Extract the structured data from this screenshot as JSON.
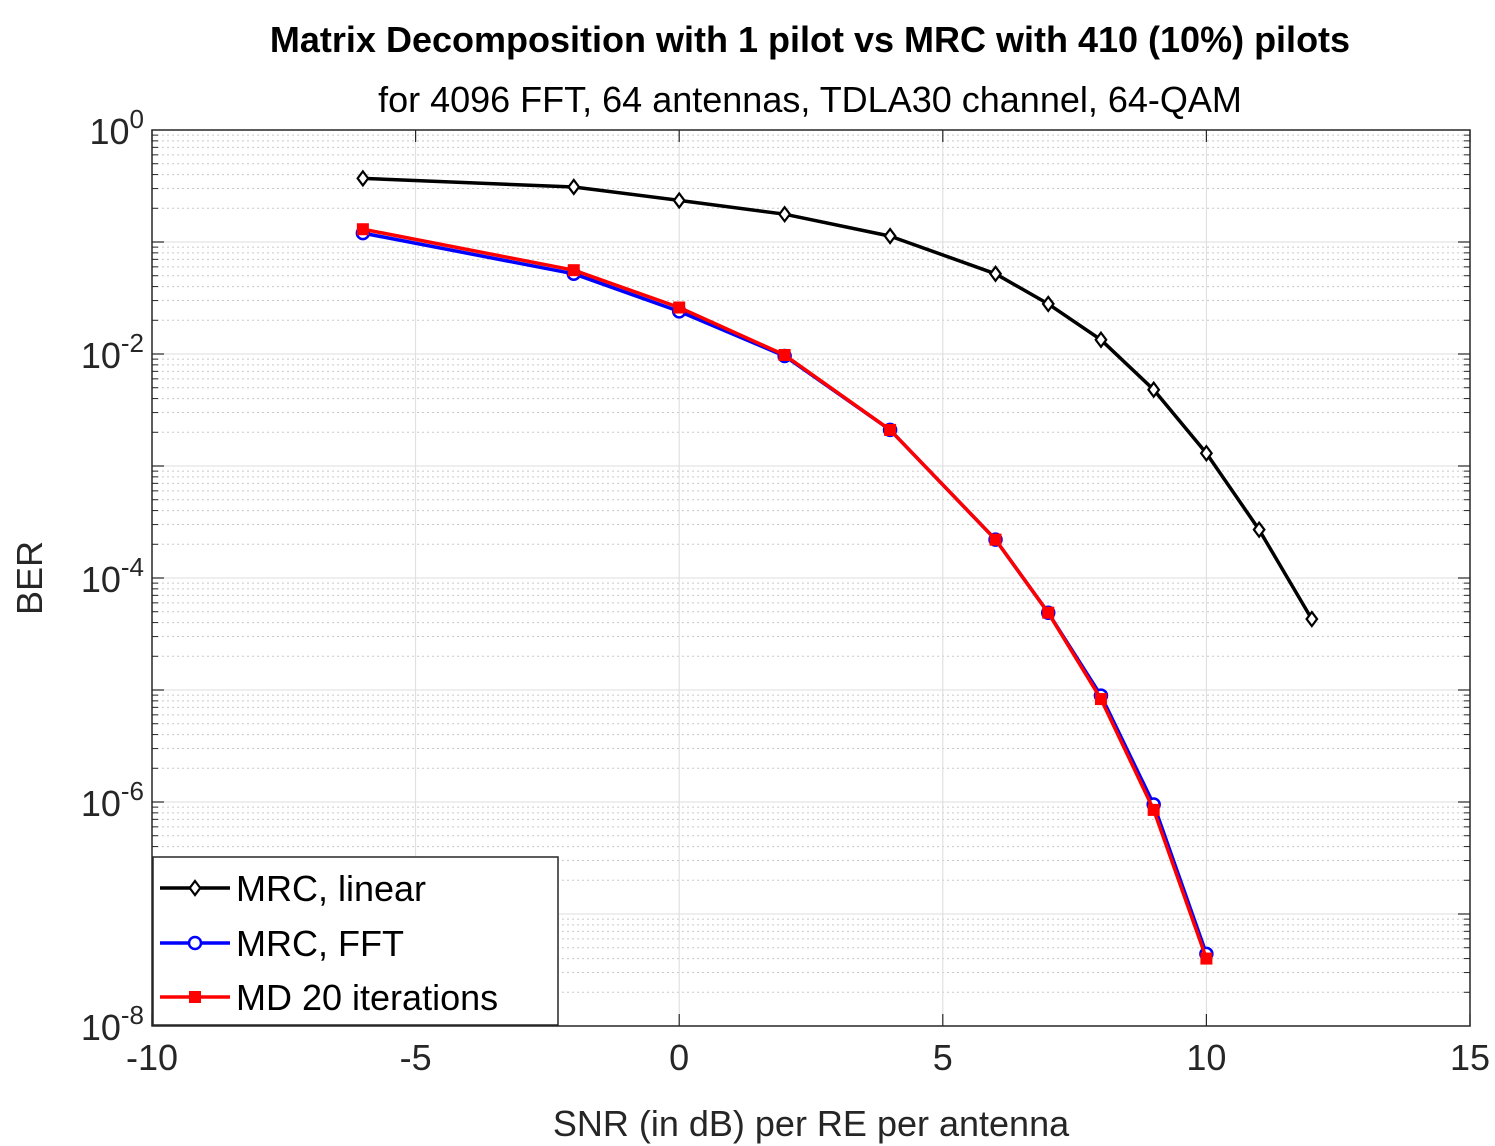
{
  "chart_data": {
    "type": "line",
    "title": "Matrix Decomposition with 1 pilot vs MRC with 410 (10%) pilots",
    "subtitle": "for 4096 FFT, 64 antennas, TDLA30 channel, 64-QAM",
    "xlabel": "SNR (in dB) per RE per antenna",
    "ylabel": "BER",
    "xlim": [
      -10,
      15
    ],
    "ylim": [
      1e-08,
      1
    ],
    "yscale": "log",
    "grid": true,
    "minor_grid": true,
    "legend_position": "bottom-left",
    "x_ticks": [
      {
        "value": -10,
        "label": "-10"
      },
      {
        "value": -5,
        "label": "-5"
      },
      {
        "value": 0,
        "label": "0"
      },
      {
        "value": 5,
        "label": "5"
      },
      {
        "value": 10,
        "label": "10"
      },
      {
        "value": 15,
        "label": "15"
      }
    ],
    "y_ticks": [
      {
        "value": 1,
        "base": "10",
        "exp": "0"
      },
      {
        "value": 0.01,
        "base": "10",
        "exp": "-2"
      },
      {
        "value": 0.0001,
        "base": "10",
        "exp": "-4"
      },
      {
        "value": 1e-06,
        "base": "10",
        "exp": "-6"
      },
      {
        "value": 1e-08,
        "base": "10",
        "exp": "-8"
      }
    ],
    "series": [
      {
        "name": "MRC, linear",
        "color": "#000000",
        "marker": "diamond",
        "x": [
          -6,
          -2,
          0,
          2,
          4,
          6,
          7,
          8,
          9,
          10,
          11,
          12
        ],
        "y": [
          0.37,
          0.31,
          0.235,
          0.177,
          0.113,
          0.052,
          0.028,
          0.0134,
          0.0048,
          0.0013,
          0.00027,
          4.3e-05
        ]
      },
      {
        "name": "MRC, FFT",
        "color": "#0000ff",
        "marker": "circle",
        "x": [
          -6,
          -2,
          0,
          2,
          4,
          6,
          7,
          8,
          9,
          10
        ],
        "y": [
          0.12,
          0.052,
          0.024,
          0.0096,
          0.0021,
          0.00022,
          4.9e-05,
          8.9e-06,
          9.5e-07,
          4.4e-08
        ]
      },
      {
        "name": "MD 20 iterations",
        "color": "#ff0000",
        "marker": "square",
        "x": [
          -6,
          -2,
          0,
          2,
          4,
          6,
          7,
          8,
          9,
          10
        ],
        "y": [
          0.13,
          0.056,
          0.026,
          0.0098,
          0.0021,
          0.00022,
          4.9e-05,
          8.3e-06,
          8.5e-07,
          4e-08
        ]
      }
    ]
  }
}
